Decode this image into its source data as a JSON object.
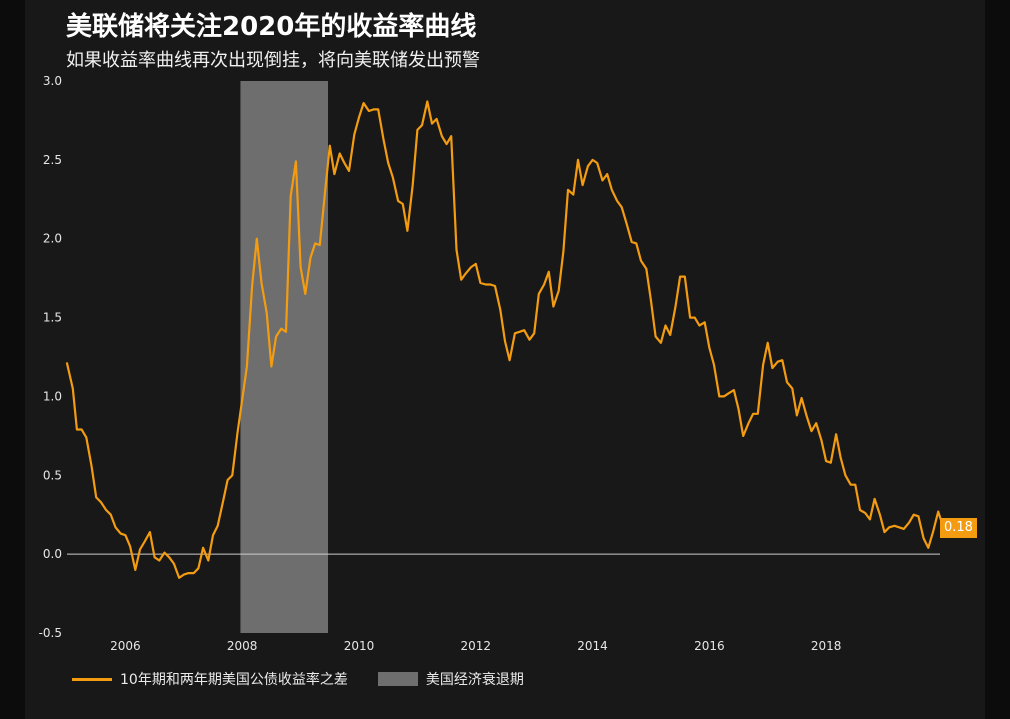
{
  "title": "美联储将关注2020年的收益率曲线",
  "subtitle": "如果收益率曲线再次出现倒挂，将向美联储发出预警",
  "end_value_label": "0.18",
  "legend": {
    "series_label": "10年期和两年期美国公债收益率之差",
    "recession_label": "美国经济衰退期"
  },
  "colors": {
    "line": "#f39c12",
    "recession": "#6e6e6e",
    "background": "#181818"
  },
  "chart_data": {
    "type": "line",
    "title": "美联储将关注2020年的收益率曲线",
    "subtitle": "如果收益率曲线再次出现倒挂，将向美联储发出预警",
    "xlim": [
      2005.0,
      2019.95
    ],
    "ylim": [
      -0.5,
      3.0
    ],
    "xticks": [
      2006,
      2008,
      2010,
      2012,
      2014,
      2016,
      2018
    ],
    "yticks": [
      -0.5,
      0.0,
      0.5,
      1.0,
      1.5,
      2.0,
      2.5,
      3.0
    ],
    "ytick_labels": [
      "-0.5",
      "0.0",
      "0.5",
      "1.0",
      "1.5",
      "2.0",
      "2.5",
      "3.0"
    ],
    "recession_band": [
      2007.97,
      2009.47
    ],
    "series": [
      {
        "name": "10年期和两年期美国公债收益率之差",
        "points": [
          [
            2005.0,
            1.21
          ],
          [
            2005.1,
            1.05
          ],
          [
            2005.17,
            0.79
          ],
          [
            2005.25,
            0.79
          ],
          [
            2005.33,
            0.74
          ],
          [
            2005.42,
            0.56
          ],
          [
            2005.5,
            0.36
          ],
          [
            2005.58,
            0.33
          ],
          [
            2005.67,
            0.28
          ],
          [
            2005.75,
            0.25
          ],
          [
            2005.83,
            0.17
          ],
          [
            2005.92,
            0.13
          ],
          [
            2006.0,
            0.12
          ],
          [
            2006.08,
            0.05
          ],
          [
            2006.17,
            -0.1
          ],
          [
            2006.25,
            0.03
          ],
          [
            2006.33,
            0.08
          ],
          [
            2006.42,
            0.14
          ],
          [
            2006.5,
            -0.02
          ],
          [
            2006.58,
            -0.04
          ],
          [
            2006.67,
            0.01
          ],
          [
            2006.75,
            -0.02
          ],
          [
            2006.83,
            -0.06
          ],
          [
            2006.92,
            -0.15
          ],
          [
            2007.0,
            -0.13
          ],
          [
            2007.08,
            -0.12
          ],
          [
            2007.17,
            -0.12
          ],
          [
            2007.25,
            -0.09
          ],
          [
            2007.33,
            0.04
          ],
          [
            2007.42,
            -0.04
          ],
          [
            2007.5,
            0.12
          ],
          [
            2007.58,
            0.18
          ],
          [
            2007.67,
            0.33
          ],
          [
            2007.75,
            0.47
          ],
          [
            2007.83,
            0.5
          ],
          [
            2007.92,
            0.77
          ],
          [
            2008.0,
            0.98
          ],
          [
            2008.08,
            1.19
          ],
          [
            2008.17,
            1.7
          ],
          [
            2008.25,
            2.0
          ],
          [
            2008.33,
            1.72
          ],
          [
            2008.42,
            1.53
          ],
          [
            2008.5,
            1.19
          ],
          [
            2008.58,
            1.38
          ],
          [
            2008.67,
            1.43
          ],
          [
            2008.75,
            1.41
          ],
          [
            2008.83,
            2.27
          ],
          [
            2008.92,
            2.49
          ],
          [
            2009.0,
            1.82
          ],
          [
            2009.08,
            1.65
          ],
          [
            2009.17,
            1.88
          ],
          [
            2009.25,
            1.97
          ],
          [
            2009.33,
            1.96
          ],
          [
            2009.42,
            2.3
          ],
          [
            2009.5,
            2.59
          ],
          [
            2009.58,
            2.41
          ],
          [
            2009.67,
            2.54
          ],
          [
            2009.75,
            2.48
          ],
          [
            2009.83,
            2.43
          ],
          [
            2009.92,
            2.66
          ],
          [
            2010.0,
            2.77
          ],
          [
            2010.08,
            2.86
          ],
          [
            2010.17,
            2.81
          ],
          [
            2010.25,
            2.82
          ],
          [
            2010.33,
            2.82
          ],
          [
            2010.42,
            2.63
          ],
          [
            2010.5,
            2.48
          ],
          [
            2010.58,
            2.39
          ],
          [
            2010.67,
            2.24
          ],
          [
            2010.75,
            2.22
          ],
          [
            2010.83,
            2.05
          ],
          [
            2010.92,
            2.34
          ],
          [
            2011.0,
            2.69
          ],
          [
            2011.08,
            2.72
          ],
          [
            2011.17,
            2.87
          ],
          [
            2011.25,
            2.73
          ],
          [
            2011.33,
            2.76
          ],
          [
            2011.42,
            2.65
          ],
          [
            2011.5,
            2.6
          ],
          [
            2011.58,
            2.65
          ],
          [
            2011.67,
            1.93
          ],
          [
            2011.75,
            1.74
          ],
          [
            2011.83,
            1.78
          ],
          [
            2011.92,
            1.82
          ],
          [
            2012.0,
            1.84
          ],
          [
            2012.08,
            1.72
          ],
          [
            2012.17,
            1.71
          ],
          [
            2012.25,
            1.71
          ],
          [
            2012.33,
            1.7
          ],
          [
            2012.42,
            1.55
          ],
          [
            2012.5,
            1.35
          ],
          [
            2012.58,
            1.23
          ],
          [
            2012.67,
            1.4
          ],
          [
            2012.75,
            1.41
          ],
          [
            2012.83,
            1.42
          ],
          [
            2012.92,
            1.36
          ],
          [
            2013.0,
            1.4
          ],
          [
            2013.08,
            1.65
          ],
          [
            2013.17,
            1.71
          ],
          [
            2013.25,
            1.79
          ],
          [
            2013.33,
            1.57
          ],
          [
            2013.42,
            1.67
          ],
          [
            2013.5,
            1.92
          ],
          [
            2013.58,
            2.31
          ],
          [
            2013.67,
            2.28
          ],
          [
            2013.75,
            2.5
          ],
          [
            2013.83,
            2.34
          ],
          [
            2013.92,
            2.46
          ],
          [
            2014.0,
            2.5
          ],
          [
            2014.08,
            2.48
          ],
          [
            2014.17,
            2.37
          ],
          [
            2014.25,
            2.41
          ],
          [
            2014.33,
            2.31
          ],
          [
            2014.42,
            2.24
          ],
          [
            2014.5,
            2.2
          ],
          [
            2014.58,
            2.1
          ],
          [
            2014.67,
            1.98
          ],
          [
            2014.75,
            1.97
          ],
          [
            2014.83,
            1.86
          ],
          [
            2014.92,
            1.81
          ],
          [
            2015.0,
            1.61
          ],
          [
            2015.08,
            1.38
          ],
          [
            2015.17,
            1.34
          ],
          [
            2015.25,
            1.45
          ],
          [
            2015.33,
            1.39
          ],
          [
            2015.42,
            1.57
          ],
          [
            2015.5,
            1.76
          ],
          [
            2015.58,
            1.76
          ],
          [
            2015.67,
            1.5
          ],
          [
            2015.75,
            1.5
          ],
          [
            2015.83,
            1.45
          ],
          [
            2015.92,
            1.47
          ],
          [
            2016.0,
            1.31
          ],
          [
            2016.08,
            1.2
          ],
          [
            2016.17,
            1.0
          ],
          [
            2016.25,
            1.0
          ],
          [
            2016.33,
            1.02
          ],
          [
            2016.42,
            1.04
          ],
          [
            2016.5,
            0.92
          ],
          [
            2016.58,
            0.75
          ],
          [
            2016.67,
            0.83
          ],
          [
            2016.75,
            0.89
          ],
          [
            2016.83,
            0.89
          ],
          [
            2016.92,
            1.2
          ],
          [
            2017.0,
            1.34
          ],
          [
            2017.08,
            1.18
          ],
          [
            2017.17,
            1.22
          ],
          [
            2017.25,
            1.23
          ],
          [
            2017.33,
            1.09
          ],
          [
            2017.42,
            1.05
          ],
          [
            2017.5,
            0.88
          ],
          [
            2017.58,
            0.99
          ],
          [
            2017.67,
            0.87
          ],
          [
            2017.75,
            0.78
          ],
          [
            2017.83,
            0.83
          ],
          [
            2017.92,
            0.72
          ],
          [
            2018.0,
            0.59
          ],
          [
            2018.08,
            0.58
          ],
          [
            2018.17,
            0.76
          ],
          [
            2018.25,
            0.61
          ],
          [
            2018.33,
            0.5
          ],
          [
            2018.42,
            0.44
          ],
          [
            2018.5,
            0.44
          ],
          [
            2018.58,
            0.28
          ],
          [
            2018.67,
            0.26
          ],
          [
            2018.75,
            0.22
          ],
          [
            2018.83,
            0.35
          ],
          [
            2018.92,
            0.25
          ],
          [
            2019.0,
            0.14
          ],
          [
            2019.08,
            0.17
          ],
          [
            2019.17,
            0.18
          ],
          [
            2019.25,
            0.17
          ],
          [
            2019.33,
            0.16
          ],
          [
            2019.42,
            0.2
          ],
          [
            2019.5,
            0.25
          ],
          [
            2019.58,
            0.24
          ],
          [
            2019.67,
            0.1
          ],
          [
            2019.75,
            0.04
          ],
          [
            2019.83,
            0.14
          ],
          [
            2019.92,
            0.27
          ],
          [
            2020.0,
            0.18
          ]
        ]
      }
    ]
  }
}
